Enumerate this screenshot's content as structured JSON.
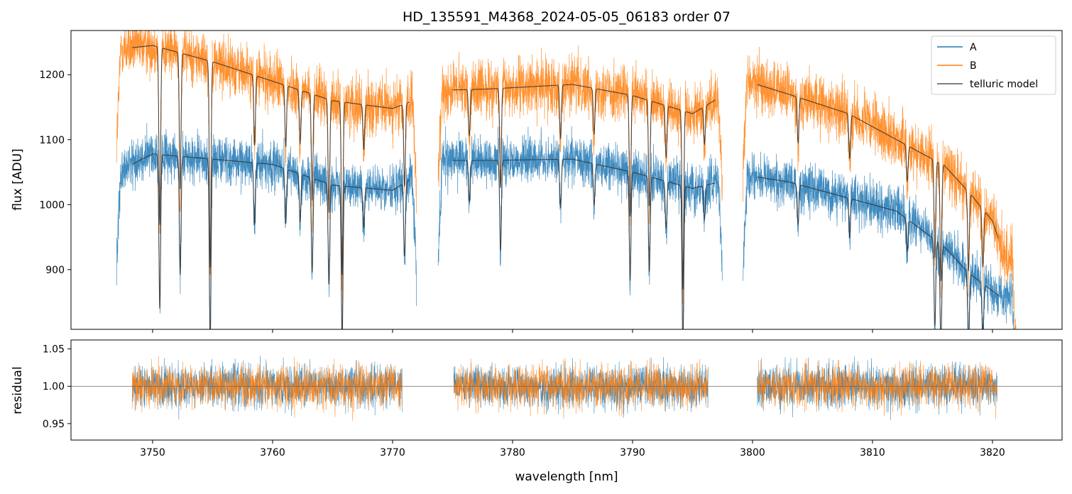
{
  "colors": {
    "A": "#1f77b4",
    "B": "#ff7f0e",
    "telluric": "#333333"
  },
  "chart_data": [
    {
      "panel": "flux",
      "type": "line",
      "title": "HD_135591_M4368_2024-05-05_06183  order 07",
      "xlabel": "",
      "ylabel": "flux [ADU]",
      "xlim": [
        3743.2,
        3825.8
      ],
      "ylim": [
        808,
        1268
      ],
      "yticks": [
        900,
        1000,
        1100,
        1200
      ],
      "yticklabels": [
        "900",
        "1000",
        "1100",
        "1200"
      ],
      "legend": {
        "placement": "upper-right",
        "entries": [
          "A",
          "B",
          "telluric model"
        ]
      },
      "segments": [
        {
          "x_start": 3747.0,
          "x_end": 3772.0
        },
        {
          "x_start": 3773.8,
          "x_end": 3797.5
        },
        {
          "x_start": 3799.2,
          "x_end": 3822.0
        }
      ],
      "continuum_knots": {
        "A": {
          "x": [
            3747.5,
            3750,
            3755,
            3760,
            3765,
            3770,
            3774,
            3778,
            3785,
            3790,
            3795,
            3799.5,
            3803,
            3808,
            3812,
            3816,
            3818,
            3820.5
          ],
          "y": [
            1055,
            1078,
            1070,
            1062,
            1030,
            1022,
            1068,
            1068,
            1070,
            1050,
            1025,
            1045,
            1035,
            1010,
            990,
            935,
            895,
            860
          ]
        },
        "B": {
          "x": [
            3747.5,
            3750,
            3755,
            3760,
            3765,
            3770,
            3774,
            3778,
            3785,
            3790,
            3795,
            3799.5,
            3803,
            3808,
            3812,
            3816,
            3818,
            3820,
            3821
          ],
          "y": [
            1240,
            1245,
            1220,
            1190,
            1160,
            1148,
            1176,
            1178,
            1185,
            1168,
            1140,
            1190,
            1170,
            1140,
            1100,
            1060,
            1020,
            975,
            920
          ]
        }
      },
      "telluric_model_range": {
        "x_start": 3748.3,
        "x_end": 3820.5
      },
      "absorption_lines": [
        {
          "x": 3750.6,
          "depth": 0.22
        },
        {
          "x": 3752.3,
          "depth": 0.17
        },
        {
          "x": 3754.8,
          "depth": 0.26
        },
        {
          "x": 3758.5,
          "depth": 0.09
        },
        {
          "x": 3761.1,
          "depth": 0.08
        },
        {
          "x": 3762.3,
          "depth": 0.07
        },
        {
          "x": 3763.3,
          "depth": 0.14
        },
        {
          "x": 3764.7,
          "depth": 0.15
        },
        {
          "x": 3765.8,
          "depth": 0.23
        },
        {
          "x": 3767.6,
          "depth": 0.06
        },
        {
          "x": 3771.0,
          "depth": 0.11
        },
        {
          "x": 3776.4,
          "depth": 0.06
        },
        {
          "x": 3779.0,
          "depth": 0.13
        },
        {
          "x": 3784.0,
          "depth": 0.07
        },
        {
          "x": 3786.8,
          "depth": 0.06
        },
        {
          "x": 3789.8,
          "depth": 0.16
        },
        {
          "x": 3791.4,
          "depth": 0.14
        },
        {
          "x": 3792.8,
          "depth": 0.07
        },
        {
          "x": 3794.2,
          "depth": 0.24
        },
        {
          "x": 3796.0,
          "depth": 0.05
        },
        {
          "x": 3803.8,
          "depth": 0.06
        },
        {
          "x": 3808.1,
          "depth": 0.06
        },
        {
          "x": 3812.9,
          "depth": 0.05
        },
        {
          "x": 3815.2,
          "depth": 0.14
        },
        {
          "x": 3815.7,
          "depth": 0.17
        },
        {
          "x": 3818.0,
          "depth": 0.12
        },
        {
          "x": 3819.2,
          "depth": 0.09
        }
      ],
      "noise_sigma": {
        "A": 25,
        "B": 30
      }
    },
    {
      "panel": "residual",
      "type": "line",
      "xlabel": "wavelength [nm]",
      "ylabel": "residual",
      "xlim": [
        3743.2,
        3825.8
      ],
      "ylim": [
        0.928,
        1.062
      ],
      "yticks": [
        0.95,
        1.0,
        1.05
      ],
      "yticklabels": [
        "0.95",
        "1.00",
        "1.05"
      ],
      "xticks": [
        3750,
        3760,
        3770,
        3780,
        3790,
        3800,
        3810,
        3820
      ],
      "xticklabels": [
        "3750",
        "3760",
        "3770",
        "3780",
        "3790",
        "3800",
        "3810",
        "3820"
      ],
      "reference_line": 1.0,
      "segments": [
        {
          "x_start": 3748.3,
          "x_end": 3770.8
        },
        {
          "x_start": 3775.1,
          "x_end": 3796.3
        },
        {
          "x_start": 3800.4,
          "x_end": 3820.4
        }
      ],
      "noise_sigma": {
        "A": 0.02,
        "B": 0.02
      }
    }
  ]
}
